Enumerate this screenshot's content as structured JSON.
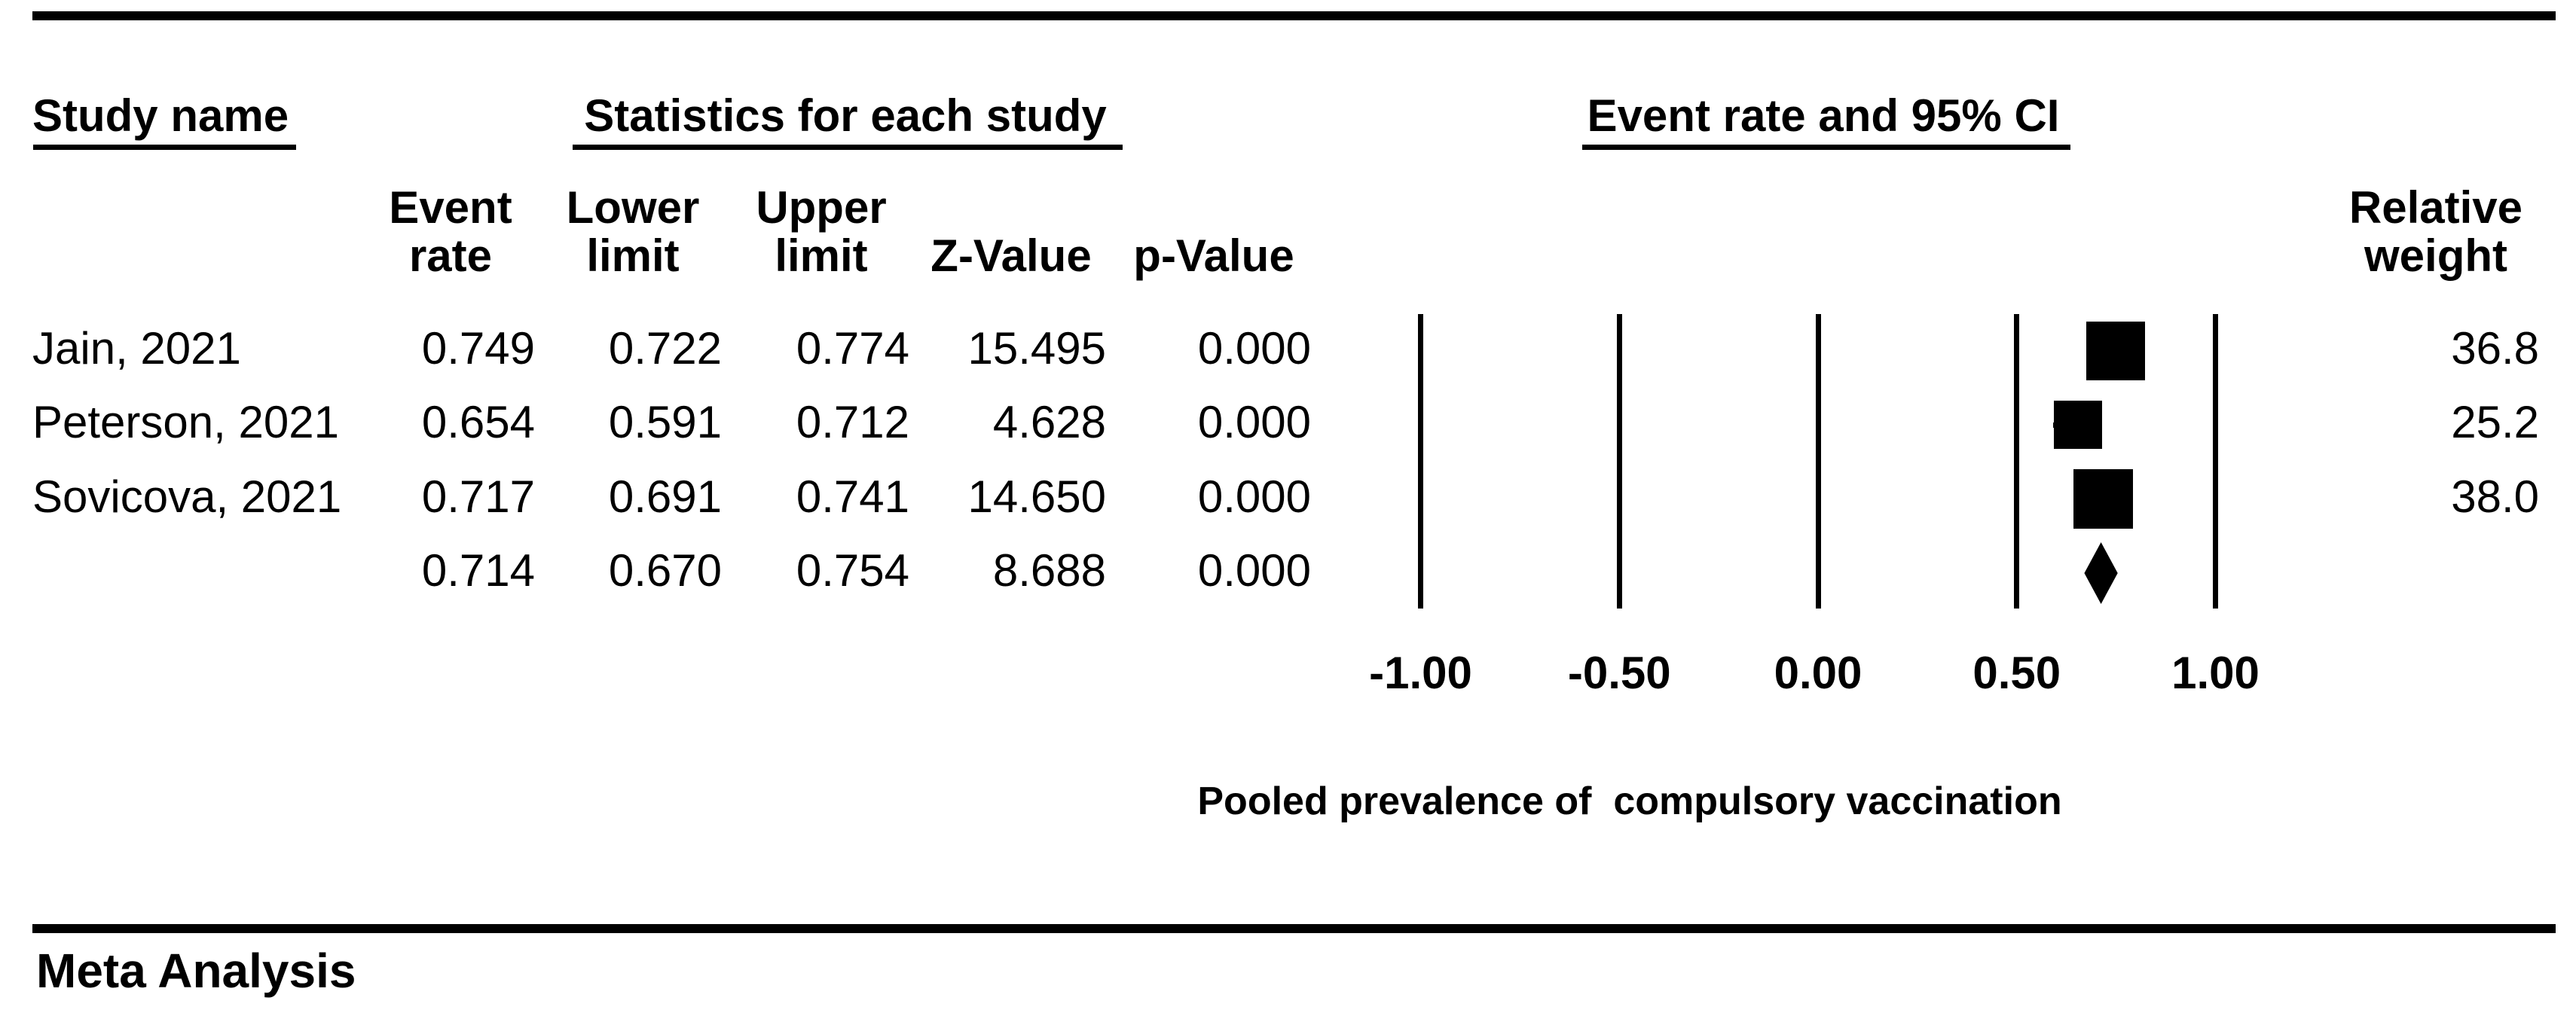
{
  "page": {
    "background": "#ffffff",
    "ink": "#000000",
    "footer": "Meta Analysis"
  },
  "headers": {
    "study_name": "Study name",
    "statistics": "Statistics for each study",
    "plot": "Event rate and 95% CI"
  },
  "columns": {
    "event_rate": "Event\nrate",
    "lower": "Lower\nlimit",
    "upper": "Upper\nlimit",
    "z": "Z-Value",
    "p": "p-Value",
    "weight": "Relative\nweight"
  },
  "chart_data": {
    "type": "forest",
    "title": "Event rate and 95% CI",
    "xlabel": "Pooled prevalence of  compulsory vaccination",
    "x_range": [
      -1.0,
      1.0
    ],
    "grid": true,
    "legend": "none",
    "marker_color": "#000000",
    "x_ticks": [
      {
        "value": -1.0,
        "label": "-1.00"
      },
      {
        "value": -0.5,
        "label": "-0.50"
      },
      {
        "value": 0.0,
        "label": "0.00"
      },
      {
        "value": 0.5,
        "label": "0.50"
      },
      {
        "value": 1.0,
        "label": "1.00"
      }
    ],
    "studies": [
      {
        "name": "Jain, 2021",
        "event_rate": "0.749",
        "lower": "0.722",
        "upper": "0.774",
        "z": "15.495",
        "p": "0.000",
        "weight": "36.8"
      },
      {
        "name": "Peterson, 2021",
        "event_rate": "0.654",
        "lower": "0.591",
        "upper": "0.712",
        "z": "4.628",
        "p": "0.000",
        "weight": "25.2"
      },
      {
        "name": "Sovicova, 2021",
        "event_rate": "0.717",
        "lower": "0.691",
        "upper": "0.741",
        "z": "14.650",
        "p": "0.000",
        "weight": "38.0"
      }
    ],
    "pooled": {
      "event_rate": "0.714",
      "lower": "0.670",
      "upper": "0.754",
      "z": "8.688",
      "p": "0.000"
    }
  }
}
